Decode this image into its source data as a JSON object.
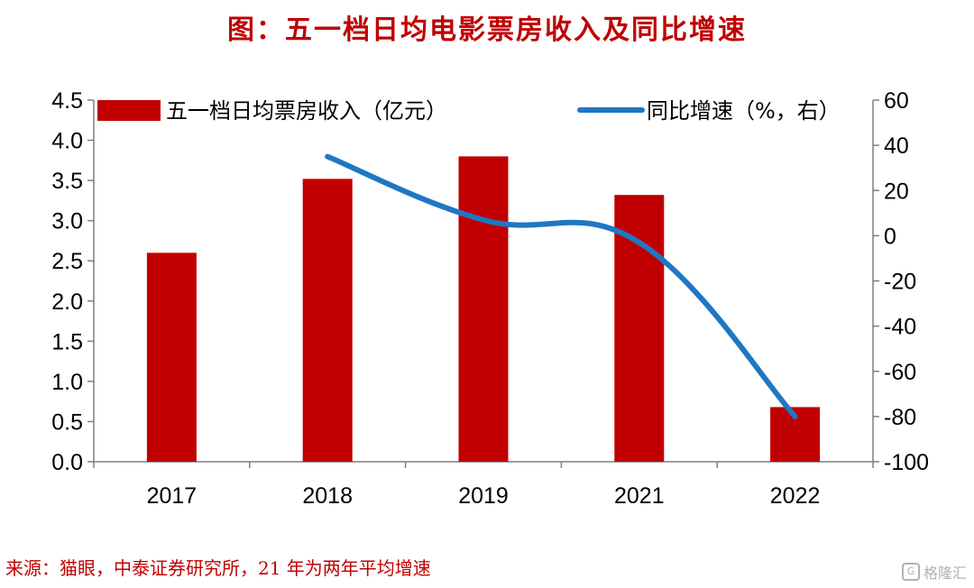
{
  "title": "图：五一档日均电影票房收入及同比增速",
  "source": "来源：猫眼，中泰证券研究所，21 年为两年平均增速",
  "watermark": "格隆汇",
  "chart_data": {
    "type": "bar",
    "categories": [
      "2017",
      "2018",
      "2019",
      "2021",
      "2022"
    ],
    "series": [
      {
        "name": "五一档日均票房收入（亿元）",
        "type": "bar",
        "axis": "left",
        "color": "#c00000",
        "values": [
          2.6,
          3.52,
          3.8,
          3.32,
          0.68
        ]
      },
      {
        "name": "同比增速（%，右）",
        "type": "line",
        "axis": "right",
        "color": "#1f77c4",
        "values": [
          null,
          35,
          7,
          -3,
          -80
        ]
      }
    ],
    "y_left": {
      "min": 0,
      "max": 4.5,
      "ticks": [
        "0.0",
        "0.5",
        "1.0",
        "1.5",
        "2.0",
        "2.5",
        "3.0",
        "3.5",
        "4.0",
        "4.5"
      ]
    },
    "y_right": {
      "min": -100,
      "max": 60,
      "ticks": [
        "-100",
        "-80",
        "-60",
        "-40",
        "-20",
        "0",
        "20",
        "40",
        "60"
      ]
    },
    "legend_position": "top",
    "grid": false
  }
}
